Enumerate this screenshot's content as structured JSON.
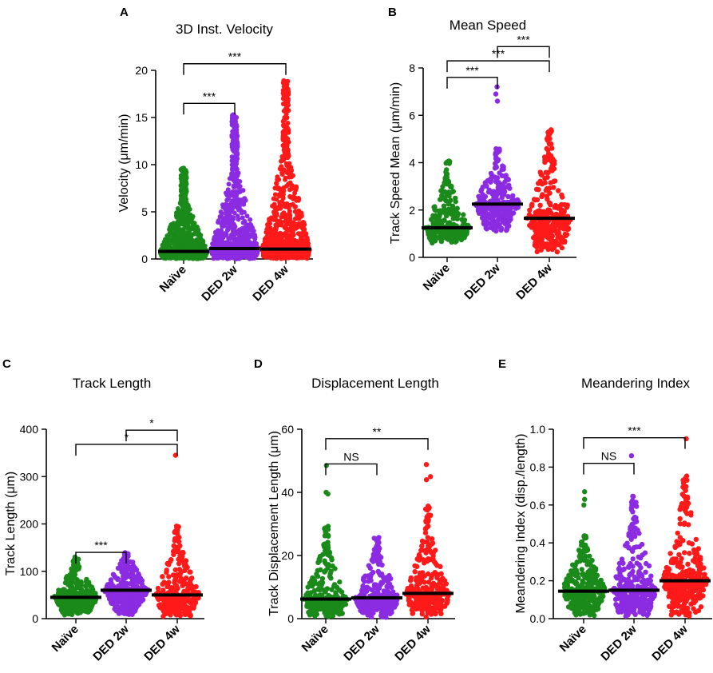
{
  "chart_data": [
    {
      "type": "scatter",
      "panel": "A",
      "title": "3D Inst. Velocity",
      "xlabel": "",
      "ylabel": "Velocity (μm/min)",
      "categories": [
        "Naïve",
        "DED 2w",
        "DED 4w"
      ],
      "colors": [
        "#1a8a1a",
        "#8b2be2",
        "#ff1a1a"
      ],
      "ylim": [
        0,
        20
      ],
      "yticks": [
        0,
        5,
        10,
        15,
        20
      ],
      "medians": [
        0.8,
        1.1,
        1.05
      ],
      "max": [
        9.7,
        15.3,
        18.9
      ],
      "outliers": [
        [],
        [
          12.0,
          11.5,
          10.8,
          15.3
        ],
        [
          18.9,
          18.5,
          18.0,
          17.5,
          17.0,
          16.5
        ]
      ],
      "density": "high",
      "significance": [
        {
          "from": 0,
          "to": 1,
          "label": "***",
          "y": 16.5
        },
        {
          "from": 0,
          "to": 2,
          "label": "***",
          "y": 20.7
        }
      ]
    },
    {
      "type": "scatter",
      "panel": "B",
      "title": "Mean Speed",
      "xlabel": "",
      "ylabel": "Track Speed Mean (μm/min)",
      "categories": [
        "Naïve",
        "DED 2w",
        "DED 4w"
      ],
      "colors": [
        "#1a8a1a",
        "#8b2be2",
        "#ff1a1a"
      ],
      "ylim": [
        0,
        8
      ],
      "yticks": [
        0,
        2,
        4,
        6,
        8
      ],
      "medians": [
        1.25,
        2.25,
        1.65
      ],
      "min": [
        0.6,
        1.1,
        0.1
      ],
      "max": [
        4.1,
        4.6,
        5.4
      ],
      "outliers": [
        [],
        [
          7.2,
          6.9,
          6.6
        ],
        []
      ],
      "density": "medium",
      "significance": [
        {
          "from": 0,
          "to": 1,
          "label": "***",
          "y": 7.6
        },
        {
          "from": 0,
          "to": 2,
          "label": "***",
          "y": 8.3
        },
        {
          "from": 1,
          "to": 2,
          "label": "***",
          "y": 8.9
        }
      ]
    },
    {
      "type": "scatter",
      "panel": "C",
      "title": "Track Length",
      "xlabel": "",
      "ylabel": "Track Length (μm)",
      "categories": [
        "Naïve",
        "DED 2w",
        "DED 4w"
      ],
      "colors": [
        "#1a8a1a",
        "#8b2be2",
        "#ff1a1a"
      ],
      "ylim": [
        0,
        400
      ],
      "yticks": [
        0,
        100,
        200,
        300,
        400
      ],
      "medians": [
        45,
        60,
        50
      ],
      "min": [
        5,
        5,
        3
      ],
      "max": [
        130,
        140,
        200
      ],
      "outliers": [
        [],
        [],
        [
          345
        ]
      ],
      "density": "medium",
      "significance": [
        {
          "from": 0,
          "to": 1,
          "label": "***",
          "y": 140
        },
        {
          "from": 0,
          "to": 2,
          "label": "*",
          "y": 368
        },
        {
          "from": 1,
          "to": 2,
          "label": "*",
          "y": 398
        }
      ]
    },
    {
      "type": "scatter",
      "panel": "D",
      "title": "Displacement Length",
      "xlabel": "",
      "ylabel": "Track Displacement Length (μm)",
      "categories": [
        "Naïve",
        "DED 2w",
        "DED 4w"
      ],
      "colors": [
        "#1a8a1a",
        "#8b2be2",
        "#ff1a1a"
      ],
      "ylim": [
        0,
        60
      ],
      "yticks": [
        0,
        20,
        40,
        60
      ],
      "medians": [
        6.2,
        6.6,
        8.0
      ],
      "min": [
        0.2,
        0.2,
        0.2
      ],
      "max": [
        30,
        26,
        36
      ],
      "outliers": [
        [
          48.5,
          40.0,
          39.5
        ],
        [],
        [
          48.8,
          45.0,
          44.0
        ]
      ],
      "density": "medium",
      "significance": [
        {
          "from": 0,
          "to": 1,
          "label": "NS",
          "y": 49
        },
        {
          "from": 0,
          "to": 2,
          "label": "**",
          "y": 57
        }
      ]
    },
    {
      "type": "scatter",
      "panel": "E",
      "title": "Meandering Index",
      "xlabel": "",
      "ylabel": "Meandering Index (disp./length)",
      "categories": [
        "Naïve",
        "DED 2w",
        "DED 4w"
      ],
      "colors": [
        "#1a8a1a",
        "#8b2be2",
        "#ff1a1a"
      ],
      "ylim": [
        0,
        1.0
      ],
      "yticks": [
        0.0,
        0.2,
        0.4,
        0.6,
        0.8,
        1.0
      ],
      "ytick_labels": [
        "0.0",
        "0.2",
        "0.4",
        "0.6",
        "0.8",
        "1.0"
      ],
      "medians": [
        0.145,
        0.15,
        0.2
      ],
      "min": [
        0.01,
        0.01,
        0.01
      ],
      "max": [
        0.45,
        0.65,
        0.8
      ],
      "outliers": [
        [
          0.67,
          0.63,
          0.6
        ],
        [
          0.86
        ],
        [
          0.95
        ]
      ],
      "density": "medium",
      "significance": [
        {
          "from": 0,
          "to": 1,
          "label": "NS",
          "y": 0.82
        },
        {
          "from": 0,
          "to": 2,
          "label": "***",
          "y": 0.955
        }
      ]
    }
  ]
}
